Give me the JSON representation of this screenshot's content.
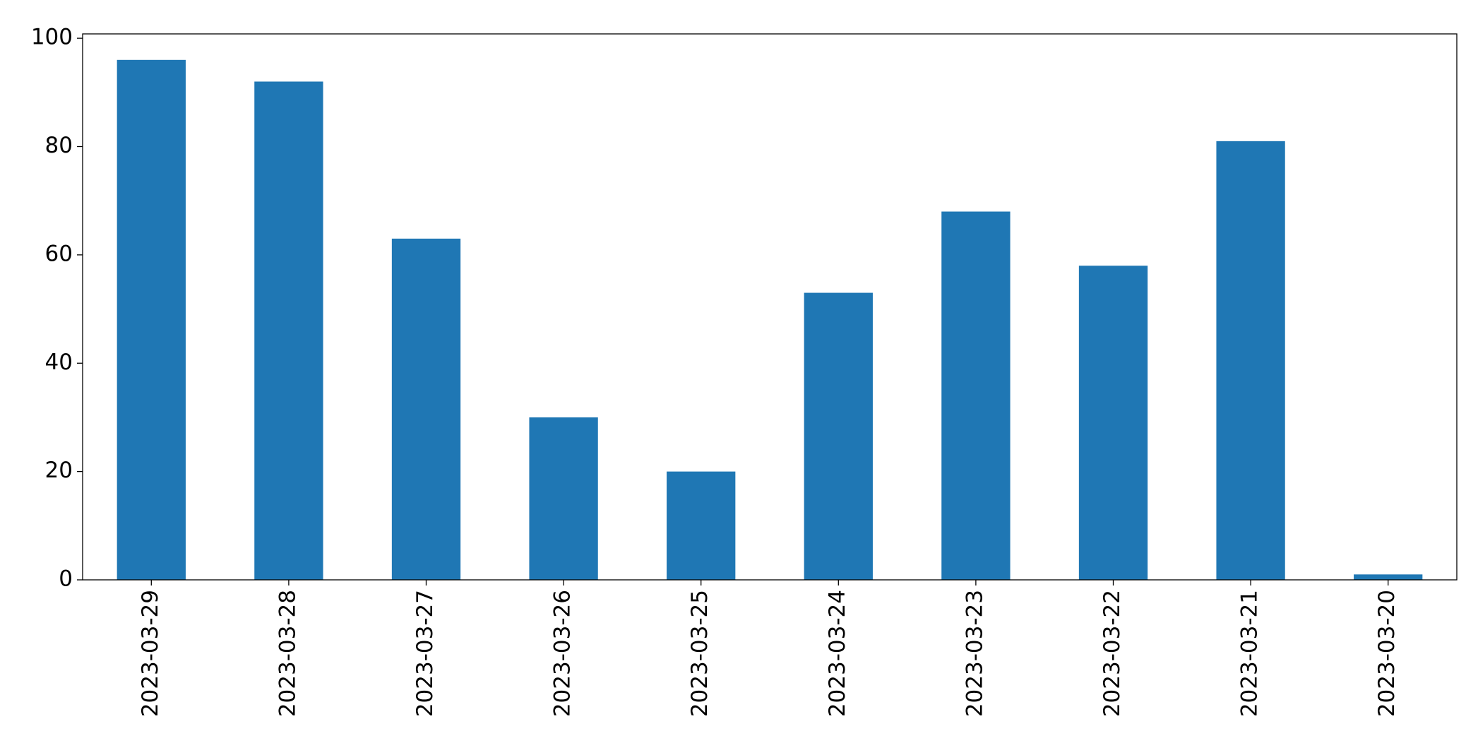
{
  "chart_data": {
    "type": "bar",
    "categories": [
      "2023-03-29",
      "2023-03-28",
      "2023-03-27",
      "2023-03-26",
      "2023-03-25",
      "2023-03-24",
      "2023-03-23",
      "2023-03-22",
      "2023-03-21",
      "2023-03-20"
    ],
    "values": [
      96,
      92,
      63,
      30,
      20,
      53,
      68,
      58,
      81,
      1
    ],
    "color": "#1f77b4",
    "ylim": [
      0,
      100.8
    ],
    "yticks": [
      0,
      20,
      40,
      60,
      80,
      100
    ],
    "grid": false
  }
}
